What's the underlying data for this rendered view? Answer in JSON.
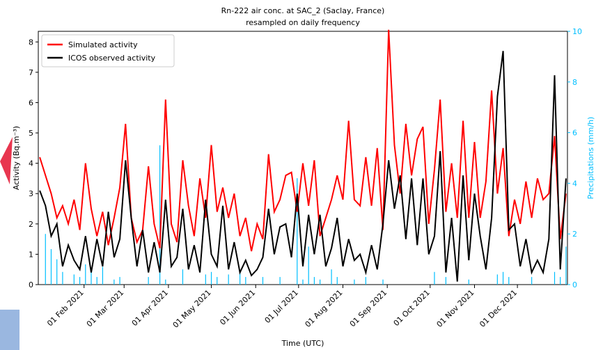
{
  "chart_data": {
    "type": "line",
    "title": "Rn-222 air conc. at SAC_2 (Saclay, France)",
    "subtitle": "resampled on daily frequency",
    "xlabel": "Time (UTC)",
    "ylabel": "Activity (Bq.m⁻³)",
    "y2label": "Precipitations (mm/h)",
    "x": [
      "2021-01-01",
      "2021-01-05",
      "2021-01-09",
      "2021-01-13",
      "2021-01-17",
      "2021-01-21",
      "2021-01-25",
      "2021-01-29",
      "2021-02-02",
      "2021-02-06",
      "2021-02-10",
      "2021-02-14",
      "2021-02-18",
      "2021-02-22",
      "2021-02-26",
      "2021-03-02",
      "2021-03-06",
      "2021-03-10",
      "2021-03-14",
      "2021-03-18",
      "2021-03-22",
      "2021-03-26",
      "2021-03-30",
      "2021-04-03",
      "2021-04-07",
      "2021-04-11",
      "2021-04-15",
      "2021-04-19",
      "2021-04-23",
      "2021-04-27",
      "2021-05-01",
      "2021-05-05",
      "2021-05-09",
      "2021-05-13",
      "2021-05-17",
      "2021-05-21",
      "2021-05-25",
      "2021-05-29",
      "2021-06-02",
      "2021-06-06",
      "2021-06-10",
      "2021-06-14",
      "2021-06-18",
      "2021-06-22",
      "2021-06-26",
      "2021-06-30",
      "2021-07-04",
      "2021-07-08",
      "2021-07-12",
      "2021-07-16",
      "2021-07-20",
      "2021-07-24",
      "2021-07-28",
      "2021-08-01",
      "2021-08-05",
      "2021-08-09",
      "2021-08-13",
      "2021-08-17",
      "2021-08-21",
      "2021-08-25",
      "2021-08-29",
      "2021-09-02",
      "2021-09-06",
      "2021-09-10",
      "2021-09-14",
      "2021-09-18",
      "2021-09-22",
      "2021-09-26",
      "2021-09-30",
      "2021-10-04",
      "2021-10-08",
      "2021-10-12",
      "2021-10-16",
      "2021-10-20",
      "2021-10-24",
      "2021-10-28",
      "2021-11-01",
      "2021-11-05",
      "2021-11-09",
      "2021-11-13",
      "2021-11-17",
      "2021-11-21",
      "2021-11-25",
      "2021-11-29",
      "2021-12-03",
      "2021-12-07",
      "2021-12-11",
      "2021-12-15",
      "2021-12-19",
      "2021-12-23",
      "2021-12-27",
      "2021-12-31",
      "2022-01-04"
    ],
    "series": [
      {
        "name": "Simulated activity",
        "color": "#ff0000",
        "values": [
          4.2,
          3.6,
          3.0,
          2.2,
          2.6,
          2.0,
          2.8,
          1.8,
          4.0,
          2.5,
          1.6,
          2.4,
          1.3,
          2.2,
          3.2,
          5.3,
          2.2,
          1.4,
          1.8,
          3.9,
          2.0,
          1.2,
          6.1,
          2.0,
          1.4,
          4.1,
          2.6,
          1.6,
          3.5,
          2.2,
          4.6,
          2.4,
          3.2,
          2.2,
          3.0,
          1.6,
          2.2,
          1.1,
          2.0,
          1.5,
          4.3,
          2.4,
          2.8,
          3.6,
          3.7,
          2.4,
          4.0,
          2.6,
          4.1,
          1.6,
          2.2,
          2.8,
          3.6,
          2.8,
          5.4,
          2.8,
          2.6,
          4.2,
          2.6,
          4.5,
          1.8,
          8.4,
          4.6,
          3.0,
          5.3,
          3.6,
          4.8,
          5.2,
          2.0,
          3.8,
          6.1,
          2.4,
          4.0,
          2.2,
          5.4,
          2.2,
          4.7,
          2.2,
          3.4,
          6.4,
          3.0,
          4.5,
          1.6,
          2.8,
          2.0,
          3.4,
          2.2,
          3.5,
          2.8,
          3.0,
          4.9,
          1.5,
          3.0
        ]
      },
      {
        "name": "ICOS observed activity",
        "color": "#000000",
        "values": [
          3.1,
          2.6,
          1.6,
          2.0,
          0.6,
          1.3,
          0.8,
          0.5,
          1.6,
          0.4,
          1.5,
          0.6,
          2.4,
          0.9,
          1.5,
          4.1,
          2.2,
          0.6,
          1.8,
          0.4,
          1.4,
          0.4,
          2.8,
          0.6,
          0.9,
          2.5,
          0.5,
          1.3,
          0.4,
          2.8,
          1.0,
          0.6,
          2.6,
          0.5,
          1.4,
          0.4,
          0.8,
          0.3,
          0.5,
          0.9,
          2.5,
          1.0,
          1.9,
          2.0,
          0.9,
          3.0,
          0.6,
          2.3,
          1.0,
          2.3,
          0.6,
          1.2,
          2.2,
          0.6,
          1.5,
          0.8,
          1.0,
          0.4,
          1.3,
          0.5,
          2.0,
          4.1,
          2.5,
          3.6,
          1.5,
          3.5,
          1.3,
          3.5,
          1.0,
          1.6,
          4.4,
          0.4,
          2.2,
          0.1,
          3.6,
          0.8,
          3.0,
          1.6,
          0.5,
          2.2,
          6.2,
          7.7,
          1.8,
          2.0,
          0.6,
          1.5,
          0.4,
          0.8,
          0.4,
          1.5,
          6.9,
          0.5,
          3.5
        ]
      },
      {
        "color": "#00bfff",
        "axis": "y2",
        "kind": "bar",
        "values": [
          0,
          2.0,
          1.4,
          1.0,
          0.5,
          0,
          0.4,
          0.3,
          0.8,
          0.5,
          0.3,
          0.7,
          0,
          0.2,
          0.3,
          0,
          0,
          0,
          0,
          0.3,
          0,
          5.5,
          0.2,
          0,
          0,
          0.6,
          0,
          0,
          0,
          0.4,
          0.5,
          0.3,
          0,
          0.4,
          0,
          0.5,
          0.3,
          0,
          0,
          0.3,
          0,
          0,
          0.3,
          0,
          0,
          4.2,
          0.2,
          1.5,
          0.3,
          0.2,
          0,
          0.6,
          0.3,
          0,
          0,
          0.2,
          0,
          0.3,
          0,
          0,
          0.2,
          0,
          0,
          0,
          0,
          0,
          0,
          0,
          0,
          0.5,
          0,
          0.3,
          0,
          0,
          0,
          0.2,
          0,
          0,
          0,
          0,
          0.4,
          0.5,
          0.3,
          0,
          0,
          0,
          0.3,
          0,
          0,
          0,
          0.5,
          0.3,
          1.5
        ]
      }
    ],
    "xlim": [
      "2020-12-31",
      "2022-01-05"
    ],
    "xticks": [
      {
        "value": "2021-02-01",
        "label": "01 Feb 2021"
      },
      {
        "value": "2021-03-01",
        "label": "01 Mar 2021"
      },
      {
        "value": "2021-04-01",
        "label": "01 Apr 2021"
      },
      {
        "value": "2021-05-01",
        "label": "01 May 2021"
      },
      {
        "value": "2021-06-01",
        "label": "01 Jun 2021"
      },
      {
        "value": "2021-07-01",
        "label": "01 Jul 2021"
      },
      {
        "value": "2021-08-01",
        "label": "01 Aug 2021"
      },
      {
        "value": "2021-09-01",
        "label": "01 Sep 2021"
      },
      {
        "value": "2021-10-01",
        "label": "01 Oct 2021"
      },
      {
        "value": "2021-11-01",
        "label": "01 Nov 2021"
      },
      {
        "value": "2021-12-01",
        "label": "01 Dec 2021"
      }
    ],
    "ylim": [
      0,
      8.35
    ],
    "yticks": [
      0,
      1,
      2,
      3,
      4,
      5,
      6,
      7,
      8
    ],
    "y2lim": [
      0,
      10
    ],
    "y2ticks": [
      0,
      2,
      4,
      6,
      8,
      10
    ],
    "y2color": "#00bfff",
    "legend": "upper left"
  }
}
